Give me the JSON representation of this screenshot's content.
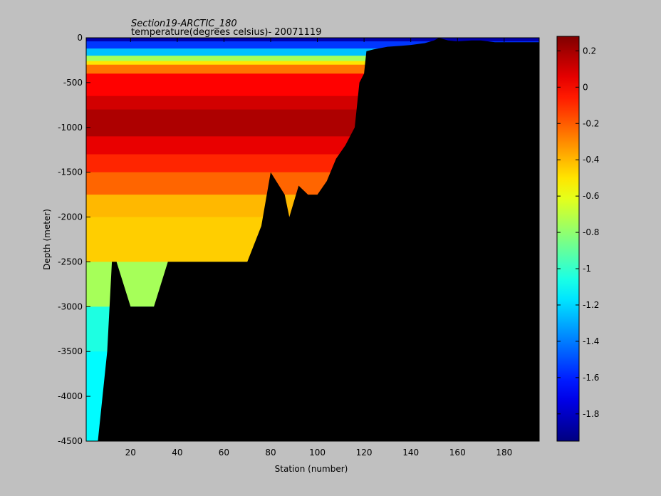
{
  "title_line1": "Section19-ARCTIC_180",
  "title_line2": "temperature(degrees  celsius)- 20071119",
  "chart_data": {
    "type": "heatmap",
    "title": "Section19-ARCTIC_180",
    "subtitle": "temperature(degrees  celsius)- 20071119",
    "xlabel": "Station (number)",
    "ylabel": "Depth (meter)",
    "xlim": [
      1,
      195
    ],
    "ylim": [
      -4500,
      0
    ],
    "x_ticks": [
      20,
      40,
      60,
      80,
      100,
      120,
      140,
      160,
      180
    ],
    "y_ticks": [
      0,
      -500,
      -1000,
      -1500,
      -2000,
      -2500,
      -3000,
      -3500,
      -4000,
      -4500
    ],
    "colorbar": {
      "range": [
        -1.95,
        0.28
      ],
      "ticks": [
        0.2,
        0,
        -0.2,
        -0.4,
        -0.6,
        -0.8,
        -1,
        -1.2,
        -1.4,
        -1.6,
        -1.8
      ],
      "colormap": "jet"
    },
    "no_data_color": "#000000",
    "bottom_depth_profile": {
      "station": [
        1,
        6,
        10,
        12,
        14,
        20,
        26,
        30,
        36,
        40,
        46,
        50,
        56,
        60,
        66,
        70,
        76,
        80,
        86,
        88,
        92,
        96,
        100,
        104,
        108,
        112,
        116,
        118,
        120,
        121,
        124,
        130,
        136,
        140,
        146,
        150,
        152,
        156,
        160,
        166,
        170,
        176,
        195
      ],
      "depth": [
        -4500,
        -4500,
        -3500,
        -2500,
        -2500,
        -3000,
        -3000,
        -3000,
        -2500,
        -2500,
        -2500,
        -2500,
        -2500,
        -2500,
        -2500,
        -2500,
        -2100,
        -1500,
        -1750,
        -2000,
        -1650,
        -1750,
        -1750,
        -1600,
        -1350,
        -1200,
        -1000,
        -500,
        -400,
        -150,
        -130,
        -100,
        -90,
        -80,
        -60,
        -30,
        0,
        -30,
        -40,
        -30,
        -30,
        -50,
        -50
      ]
    },
    "temperature_layers": [
      {
        "depth_top": 0,
        "depth_bottom": -40,
        "temperature": -1.85
      },
      {
        "depth_top": -40,
        "depth_bottom": -120,
        "temperature": -1.55
      },
      {
        "depth_top": -120,
        "depth_bottom": -200,
        "temperature": -1.25
      },
      {
        "depth_top": -200,
        "depth_bottom": -260,
        "temperature": -0.75
      },
      {
        "depth_top": -260,
        "depth_bottom": -300,
        "temperature": -0.5
      },
      {
        "depth_top": -300,
        "depth_bottom": -400,
        "temperature": -0.25
      },
      {
        "depth_top": -400,
        "depth_bottom": -650,
        "temperature": 0.0
      },
      {
        "depth_top": -650,
        "depth_bottom": -800,
        "temperature": 0.1
      },
      {
        "depth_top": -800,
        "depth_bottom": -1100,
        "temperature": 0.18
      },
      {
        "depth_top": -1100,
        "depth_bottom": -1300,
        "temperature": 0.05
      },
      {
        "depth_top": -1300,
        "depth_bottom": -1500,
        "temperature": -0.08
      },
      {
        "depth_top": -1500,
        "depth_bottom": -1750,
        "temperature": -0.22
      },
      {
        "depth_top": -1750,
        "depth_bottom": -2000,
        "temperature": -0.4
      },
      {
        "depth_top": -2000,
        "depth_bottom": -2500,
        "temperature": -0.45
      },
      {
        "depth_top": -2500,
        "depth_bottom": -3000,
        "temperature": -0.75
      },
      {
        "depth_top": -3000,
        "depth_bottom": -3500,
        "temperature": -1.05
      },
      {
        "depth_top": -3500,
        "depth_bottom": -4500,
        "temperature": -1.12
      }
    ]
  }
}
